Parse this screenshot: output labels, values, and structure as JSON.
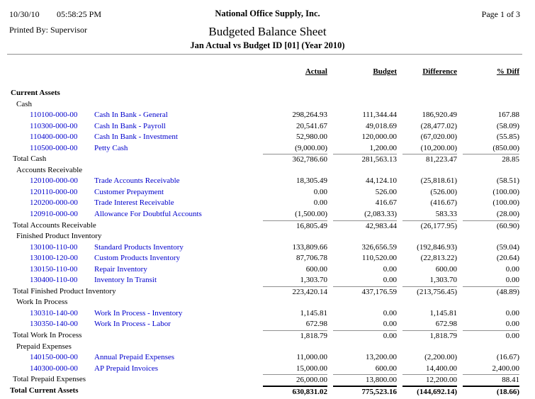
{
  "colors": {
    "link_blue": "#0000CC",
    "rule_gray": "#909090",
    "grand_total_line": "#000000"
  },
  "header": {
    "date": "10/30/10",
    "time": "05:58:25 PM",
    "company": "National Office Supply, Inc.",
    "page_indicator": "Page 1 of 3",
    "printed_by": "Printed By: Supervisor",
    "title": "Budgeted Balance Sheet",
    "subtitle": "Jan Actual vs Budget ID [01] (Year 2010)"
  },
  "columns": {
    "actual": "Actual",
    "budget": "Budget",
    "difference": "Difference",
    "pct_diff": "% Diff"
  },
  "report": {
    "rows": [
      {
        "type": "header1",
        "label": "Current Assets"
      },
      {
        "type": "header2",
        "label": "Cash"
      },
      {
        "type": "account",
        "code": "110100-000-00",
        "desc": "Cash In Bank - General",
        "actual": "298,264.93",
        "budget": "111,344.44",
        "difference": "186,920.49",
        "pct": "167.88"
      },
      {
        "type": "account",
        "code": "110300-000-00",
        "desc": "Cash In Bank - Payroll",
        "actual": "20,541.67",
        "budget": "49,018.69",
        "difference": "(28,477.02)",
        "pct": "(58.09)"
      },
      {
        "type": "account",
        "code": "110400-000-00",
        "desc": "Cash In Bank - Investment",
        "actual": "52,980.00",
        "budget": "120,000.00",
        "difference": "(67,020.00)",
        "pct": "(55.85)"
      },
      {
        "type": "account",
        "code": "110500-000-00",
        "desc": "Petty Cash",
        "actual": "(9,000.00)",
        "budget": "1,200.00",
        "difference": "(10,200.00)",
        "pct": "(850.00)"
      },
      {
        "type": "total",
        "label": "Total Cash",
        "actual": "362,786.60",
        "budget": "281,563.13",
        "difference": "81,223.47",
        "pct": "28.85"
      },
      {
        "type": "header2",
        "label": "Accounts Receivable"
      },
      {
        "type": "account",
        "code": "120100-000-00",
        "desc": "Trade Accounts Receivable",
        "actual": "18,305.49",
        "budget": "44,124.10",
        "difference": "(25,818.61)",
        "pct": "(58.51)"
      },
      {
        "type": "account",
        "code": "120110-000-00",
        "desc": "Customer Prepayment",
        "actual": "0.00",
        "budget": "526.00",
        "difference": "(526.00)",
        "pct": "(100.00)"
      },
      {
        "type": "account",
        "code": "120200-000-00",
        "desc": "Trade Interest Receivable",
        "actual": "0.00",
        "budget": "416.67",
        "difference": "(416.67)",
        "pct": "(100.00)"
      },
      {
        "type": "account",
        "code": "120910-000-00",
        "desc": "Allowance For Doubtful Accounts",
        "actual": "(1,500.00)",
        "budget": "(2,083.33)",
        "difference": "583.33",
        "pct": "(28.00)"
      },
      {
        "type": "total",
        "label": "Total Accounts Receivable",
        "actual": "16,805.49",
        "budget": "42,983.44",
        "difference": "(26,177.95)",
        "pct": "(60.90)"
      },
      {
        "type": "header2",
        "label": "Finished Product Inventory"
      },
      {
        "type": "account",
        "code": "130100-110-00",
        "desc": "Standard Products Inventory",
        "actual": "133,809.66",
        "budget": "326,656.59",
        "difference": "(192,846.93)",
        "pct": "(59.04)"
      },
      {
        "type": "account",
        "code": "130100-120-00",
        "desc": "Custom Products Inventory",
        "actual": "87,706.78",
        "budget": "110,520.00",
        "difference": "(22,813.22)",
        "pct": "(20.64)"
      },
      {
        "type": "account",
        "code": "130150-110-00",
        "desc": "Repair Inventory",
        "actual": "600.00",
        "budget": "0.00",
        "difference": "600.00",
        "pct": "0.00"
      },
      {
        "type": "account",
        "code": "130400-110-00",
        "desc": "Inventory In Transit",
        "actual": "1,303.70",
        "budget": "0.00",
        "difference": "1,303.70",
        "pct": "0.00"
      },
      {
        "type": "total",
        "label": "Total Finished Product Inventory",
        "actual": "223,420.14",
        "budget": "437,176.59",
        "difference": "(213,756.45)",
        "pct": "(48.89)"
      },
      {
        "type": "header2",
        "label": "Work In Process"
      },
      {
        "type": "account",
        "code": "130310-140-00",
        "desc": "Work In Process - Inventory",
        "actual": "1,145.81",
        "budget": "0.00",
        "difference": "1,145.81",
        "pct": "0.00"
      },
      {
        "type": "account",
        "code": "130350-140-00",
        "desc": "Work In Process - Labor",
        "actual": "672.98",
        "budget": "0.00",
        "difference": "672.98",
        "pct": "0.00"
      },
      {
        "type": "total",
        "label": "Total Work In Process",
        "actual": "1,818.79",
        "budget": "0.00",
        "difference": "1,818.79",
        "pct": "0.00"
      },
      {
        "type": "header2",
        "label": "Prepaid Expenses"
      },
      {
        "type": "account",
        "code": "140150-000-00",
        "desc": "Annual Prepaid Expenses",
        "actual": "11,000.00",
        "budget": "13,200.00",
        "difference": "(2,200.00)",
        "pct": "(16.67)"
      },
      {
        "type": "account",
        "code": "140300-000-00",
        "desc": "AP Prepaid Invoices",
        "actual": "15,000.00",
        "budget": "600.00",
        "difference": "14,400.00",
        "pct": "2,400.00"
      },
      {
        "type": "total",
        "label": "Total Prepaid Expenses",
        "actual": "26,000.00",
        "budget": "13,800.00",
        "difference": "12,200.00",
        "pct": "88.41"
      },
      {
        "type": "grand_total",
        "label": "Total Current Assets",
        "actual": "630,831.02",
        "budget": "775,523.16",
        "difference": "(144,692.14)",
        "pct": "(18.66)"
      }
    ]
  }
}
